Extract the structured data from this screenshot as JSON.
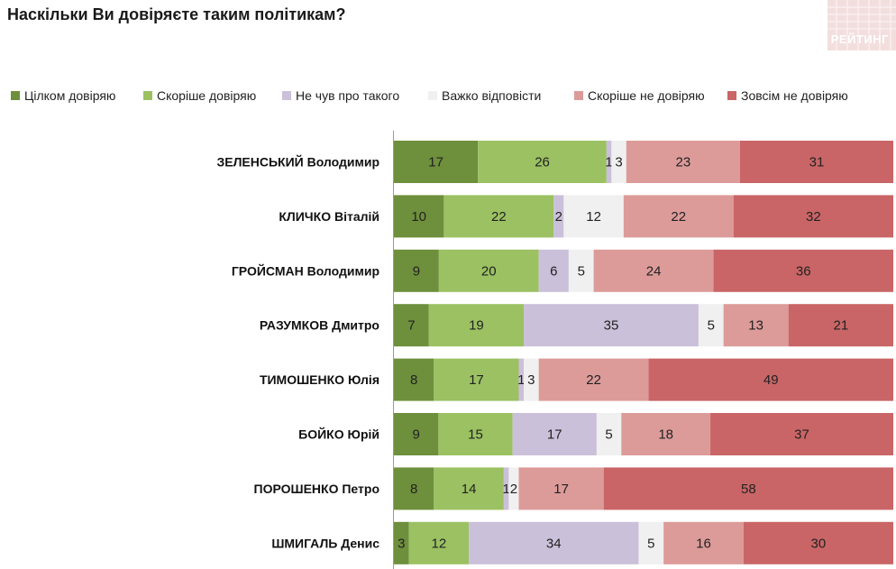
{
  "chart_data": {
    "type": "bar",
    "orientation": "horizontal",
    "stacked": true,
    "title": "Наскільки Ви довіряєте таким політикам?",
    "categories": [
      "ЗЕЛЕНСЬКИЙ Володимир",
      "КЛИЧКО Віталій",
      "ГРОЙСМАН Володимир",
      "РАЗУМКОВ Дмитро",
      "ТИМОШЕНКО Юлія",
      "БОЙКО Юрій",
      "ПОРОШЕНКО Петро",
      "ШМИГАЛЬ Денис"
    ],
    "series": [
      {
        "name": "Цілком довіряю",
        "color": "#6e8f3b",
        "values": [
          17,
          10,
          9,
          7,
          8,
          9,
          8,
          3
        ]
      },
      {
        "name": "Скоріше довіряю",
        "color": "#9bc162",
        "values": [
          26,
          22,
          20,
          19,
          17,
          15,
          14,
          12
        ]
      },
      {
        "name": "Не чув про такого",
        "color": "#cbc0d9",
        "values": [
          1,
          2,
          6,
          35,
          1,
          17,
          1,
          34
        ]
      },
      {
        "name": "Важко відповісти",
        "color": "#f0f0f0",
        "values": [
          3,
          12,
          5,
          5,
          3,
          5,
          2,
          5
        ]
      },
      {
        "name": "Скоріше не довіряю",
        "color": "#dc9b99",
        "values": [
          23,
          22,
          24,
          13,
          22,
          18,
          17,
          16
        ]
      },
      {
        "name": "Зовсім не довіряю",
        "color": "#c96566",
        "values": [
          31,
          32,
          36,
          21,
          49,
          37,
          58,
          30
        ]
      }
    ],
    "xlim": [
      0,
      100
    ],
    "grid": false,
    "legend": "top"
  },
  "logo_text": "РЕЙТИНГ"
}
